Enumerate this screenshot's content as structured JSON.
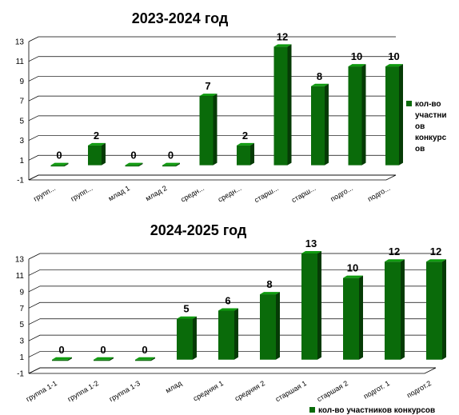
{
  "chart_data": [
    {
      "type": "bar",
      "title": "2023-2024 год",
      "categories": [
        "групп...",
        "групп...",
        "млад 1",
        "млад 2",
        "средн...",
        "средн...",
        "старш...",
        "старш...",
        "подго...",
        "подго..."
      ],
      "series": [
        {
          "name": "кол-во участников конкурсов",
          "values": [
            0,
            2,
            0,
            0,
            7,
            2,
            12,
            8,
            10,
            10
          ]
        }
      ],
      "legend_lines": [
        "кол-во",
        "участни",
        "ов",
        "конкурс",
        "ов"
      ],
      "y_ticks": [
        -1,
        1,
        3,
        5,
        7,
        9,
        11,
        13
      ],
      "ylim": [
        -1,
        13
      ],
      "grid": true,
      "legend_position": "right",
      "bar_color": "#0a6b0a"
    },
    {
      "type": "bar",
      "title": "2024-2025 год",
      "categories": [
        "группа 1-1",
        "группа 1-2",
        "группа 1-3",
        "млад",
        "средняя 1",
        "средняя 2",
        "старшая 1",
        "старшая 2",
        "подгот. 1",
        "подгот.2"
      ],
      "series": [
        {
          "name": "кол-во участников конкурсов",
          "values": [
            0,
            0,
            0,
            5,
            6,
            8,
            13,
            10,
            12,
            12
          ]
        }
      ],
      "legend_lines": [
        "кол-во участников конкурсов"
      ],
      "y_ticks": [
        -1,
        1,
        3,
        5,
        7,
        9,
        11,
        13
      ],
      "ylim": [
        -1,
        13
      ],
      "grid": true,
      "legend_position": "bottom-right",
      "bar_color": "#0a6b0a"
    }
  ]
}
